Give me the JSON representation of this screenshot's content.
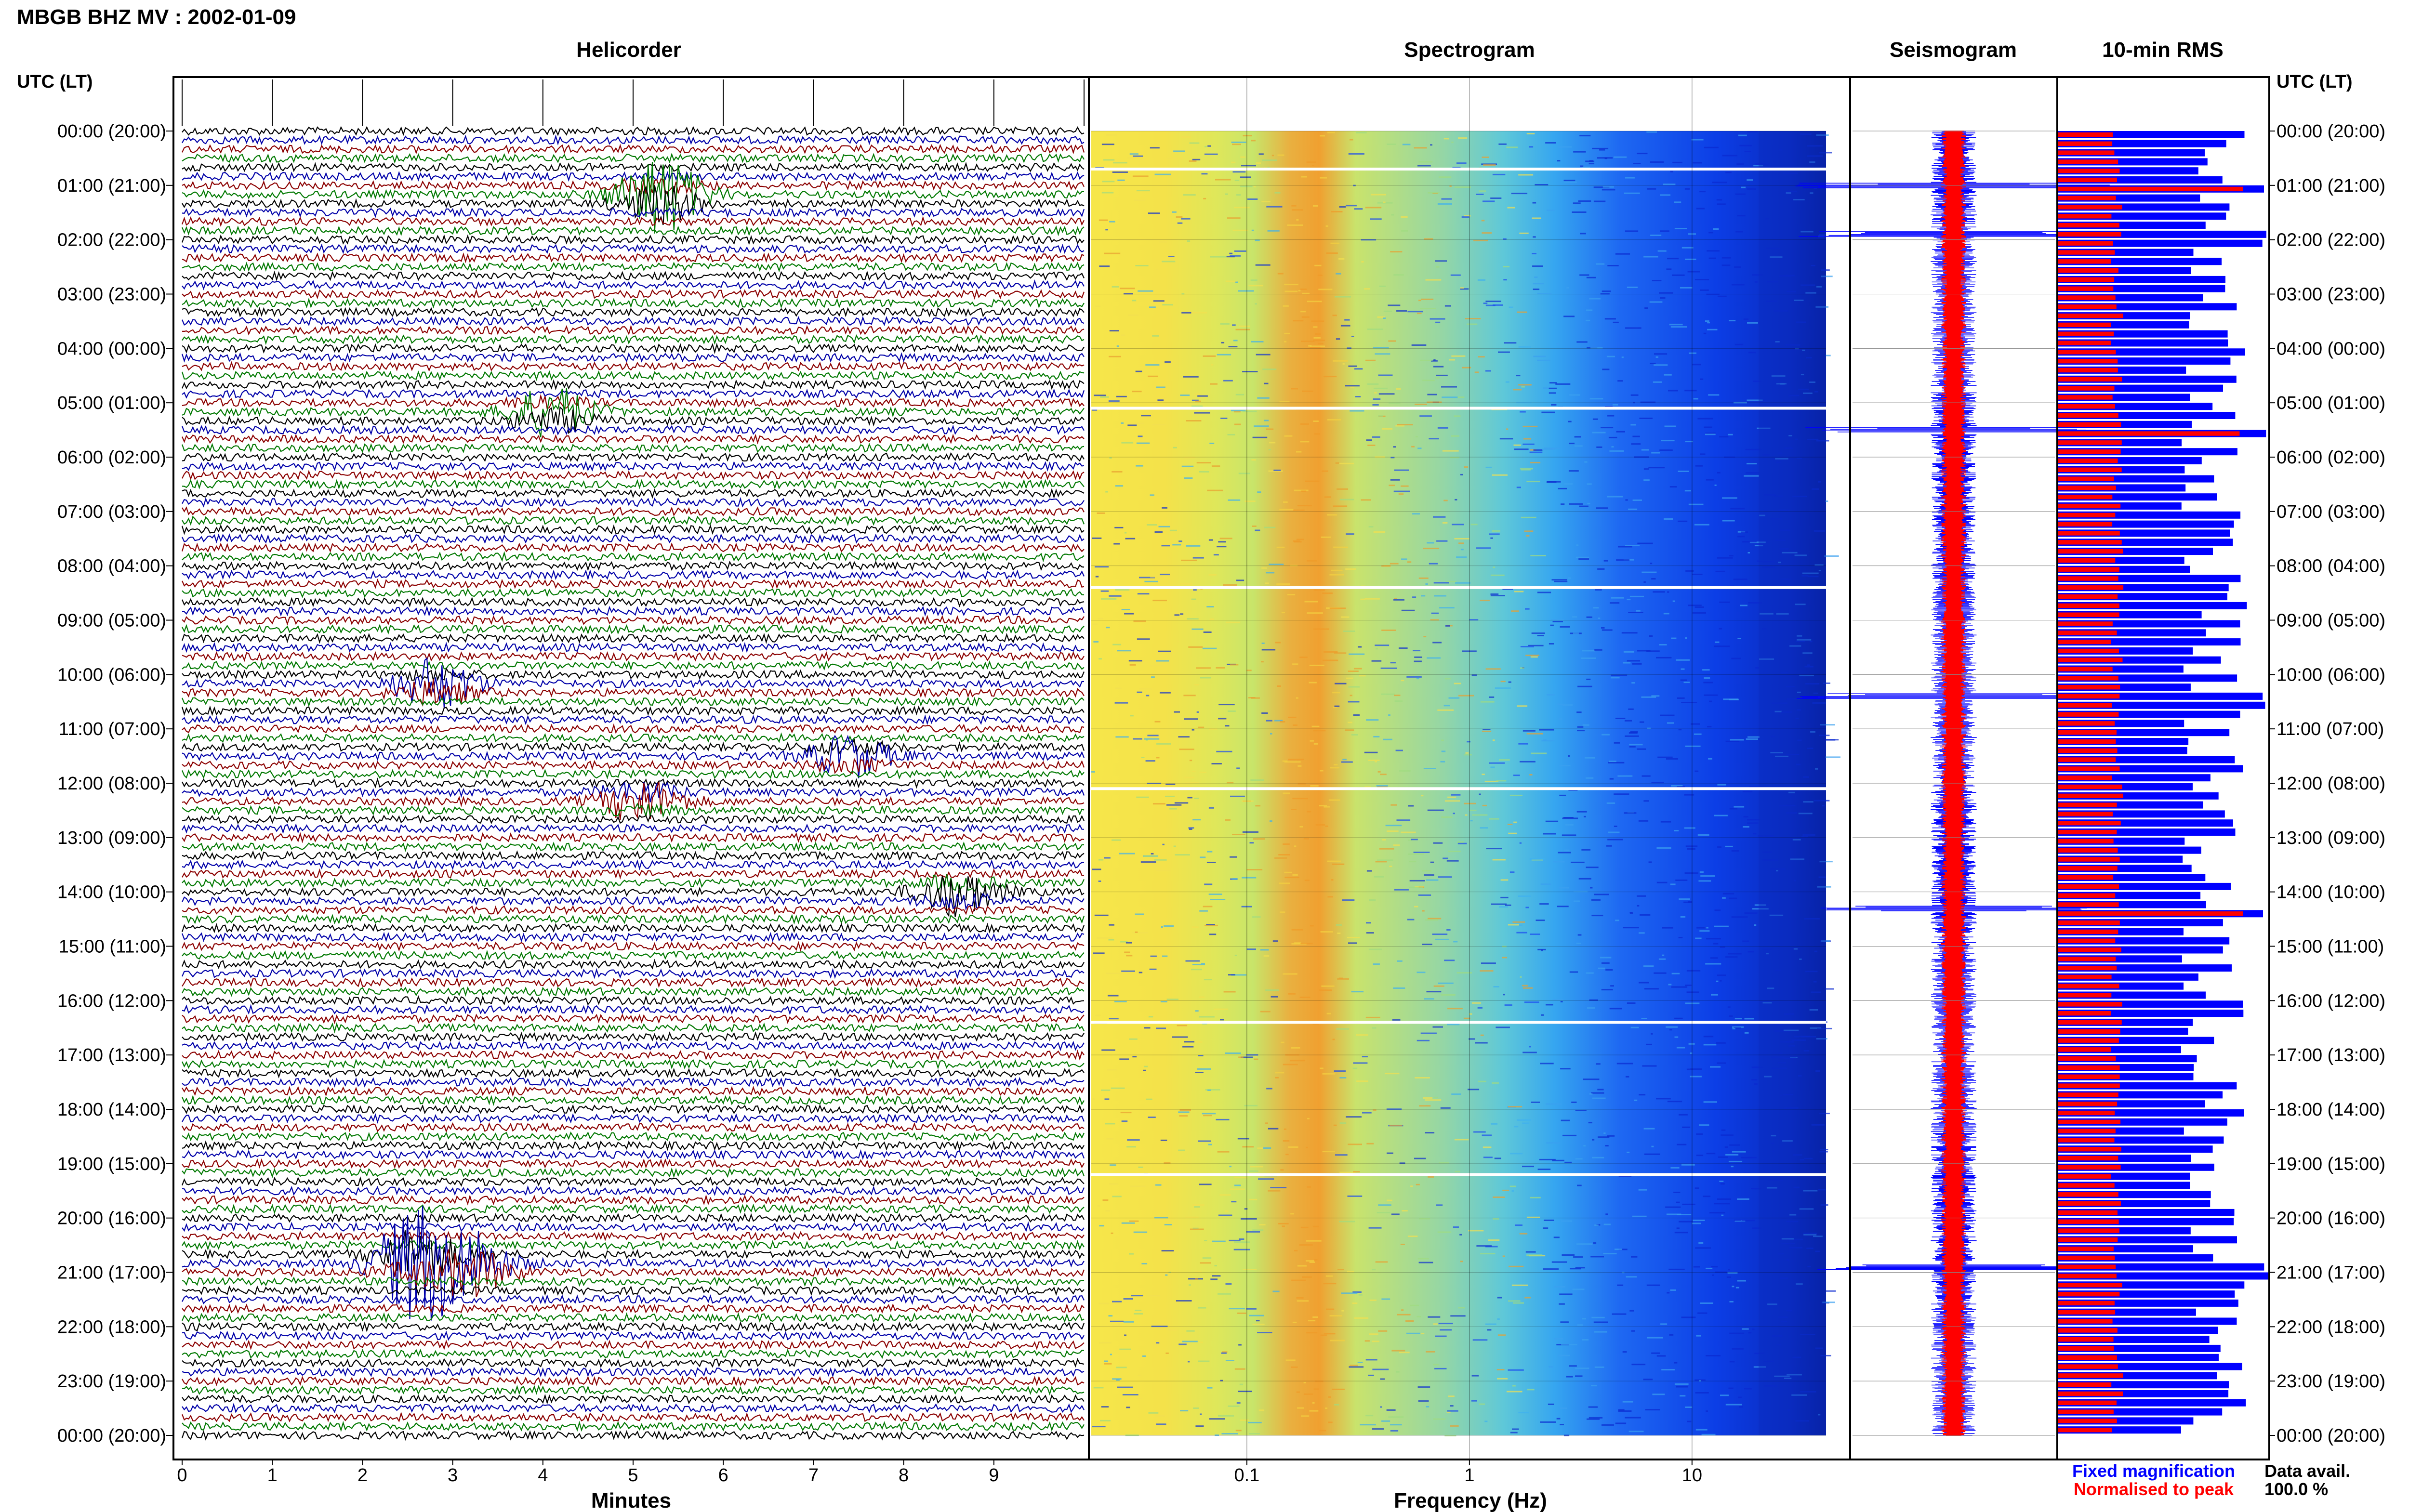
{
  "title": "MBGB BHZ MV : 2002-01-09",
  "time_axis_label": "UTC (LT)",
  "time_ticks": [
    "00:00 (20:00)",
    "01:00 (21:00)",
    "02:00 (22:00)",
    "03:00 (23:00)",
    "04:00 (00:00)",
    "05:00 (01:00)",
    "06:00 (02:00)",
    "07:00 (03:00)",
    "08:00 (04:00)",
    "09:00 (05:00)",
    "10:00 (06:00)",
    "11:00 (07:00)",
    "12:00 (08:00)",
    "13:00 (09:00)",
    "14:00 (10:00)",
    "15:00 (11:00)",
    "16:00 (12:00)",
    "17:00 (13:00)",
    "18:00 (14:00)",
    "19:00 (15:00)",
    "20:00 (16:00)",
    "21:00 (17:00)",
    "22:00 (18:00)",
    "23:00 (19:00)",
    "00:00 (20:00)"
  ],
  "colors": {
    "trace_cycle": [
      "#000000",
      "#0000a8",
      "#8b0000",
      "#007800"
    ],
    "rms_fixed": "#0000ff",
    "rms_normalised": "#ff0000"
  },
  "chart_data": [
    {
      "type": "line",
      "title": "Helicorder",
      "xlabel": "Minutes",
      "x_ticks": [
        "0",
        "1",
        "2",
        "3",
        "4",
        "5",
        "6",
        "7",
        "8",
        "9"
      ],
      "xlim": [
        0,
        10
      ],
      "rows_per_hour": 6,
      "events": [
        {
          "hour": 1.2,
          "minute": 5.3,
          "amp": 3.0
        },
        {
          "hour": 5.2,
          "minute": 4.1,
          "amp": 1.8
        },
        {
          "hour": 10.2,
          "minute": 2.8,
          "amp": 1.8
        },
        {
          "hour": 14.0,
          "minute": 8.6,
          "amp": 1.6
        },
        {
          "hour": 20.8,
          "minute": 2.6,
          "amp": 4.0
        },
        {
          "hour": 20.9,
          "minute": 3.2,
          "amp": 2.5
        },
        {
          "hour": 12.3,
          "minute": 5.1,
          "amp": 1.5
        },
        {
          "hour": 11.5,
          "minute": 7.4,
          "amp": 1.4
        }
      ]
    },
    {
      "type": "heatmap",
      "title": "Spectrogram",
      "xlabel": "Frequency (Hz)",
      "x_ticks": [
        "0.1",
        "1",
        "10"
      ],
      "x_scale": "log",
      "xlim": [
        0.02,
        40
      ],
      "gaps_utc_hours": [
        0.7,
        5.1,
        8.4,
        12.1,
        16.4,
        19.2
      ]
    },
    {
      "type": "line",
      "title": "Seismogram",
      "spikes_utc_hours": [
        1.0,
        1.9,
        5.5,
        10.4,
        14.3,
        20.9
      ]
    },
    {
      "type": "bar",
      "title": "10-min RMS",
      "orientation": "horizontal",
      "series": [
        {
          "name": "Fixed magnification",
          "color": "#0000ff"
        },
        {
          "name": "Normalised to peak",
          "color": "#ff0000"
        }
      ]
    }
  ],
  "legend": {
    "fixed": "Fixed magnification",
    "normalised": "Normalised to peak"
  },
  "data_avail": {
    "label": "Data avail.",
    "value": "100.0 %"
  }
}
